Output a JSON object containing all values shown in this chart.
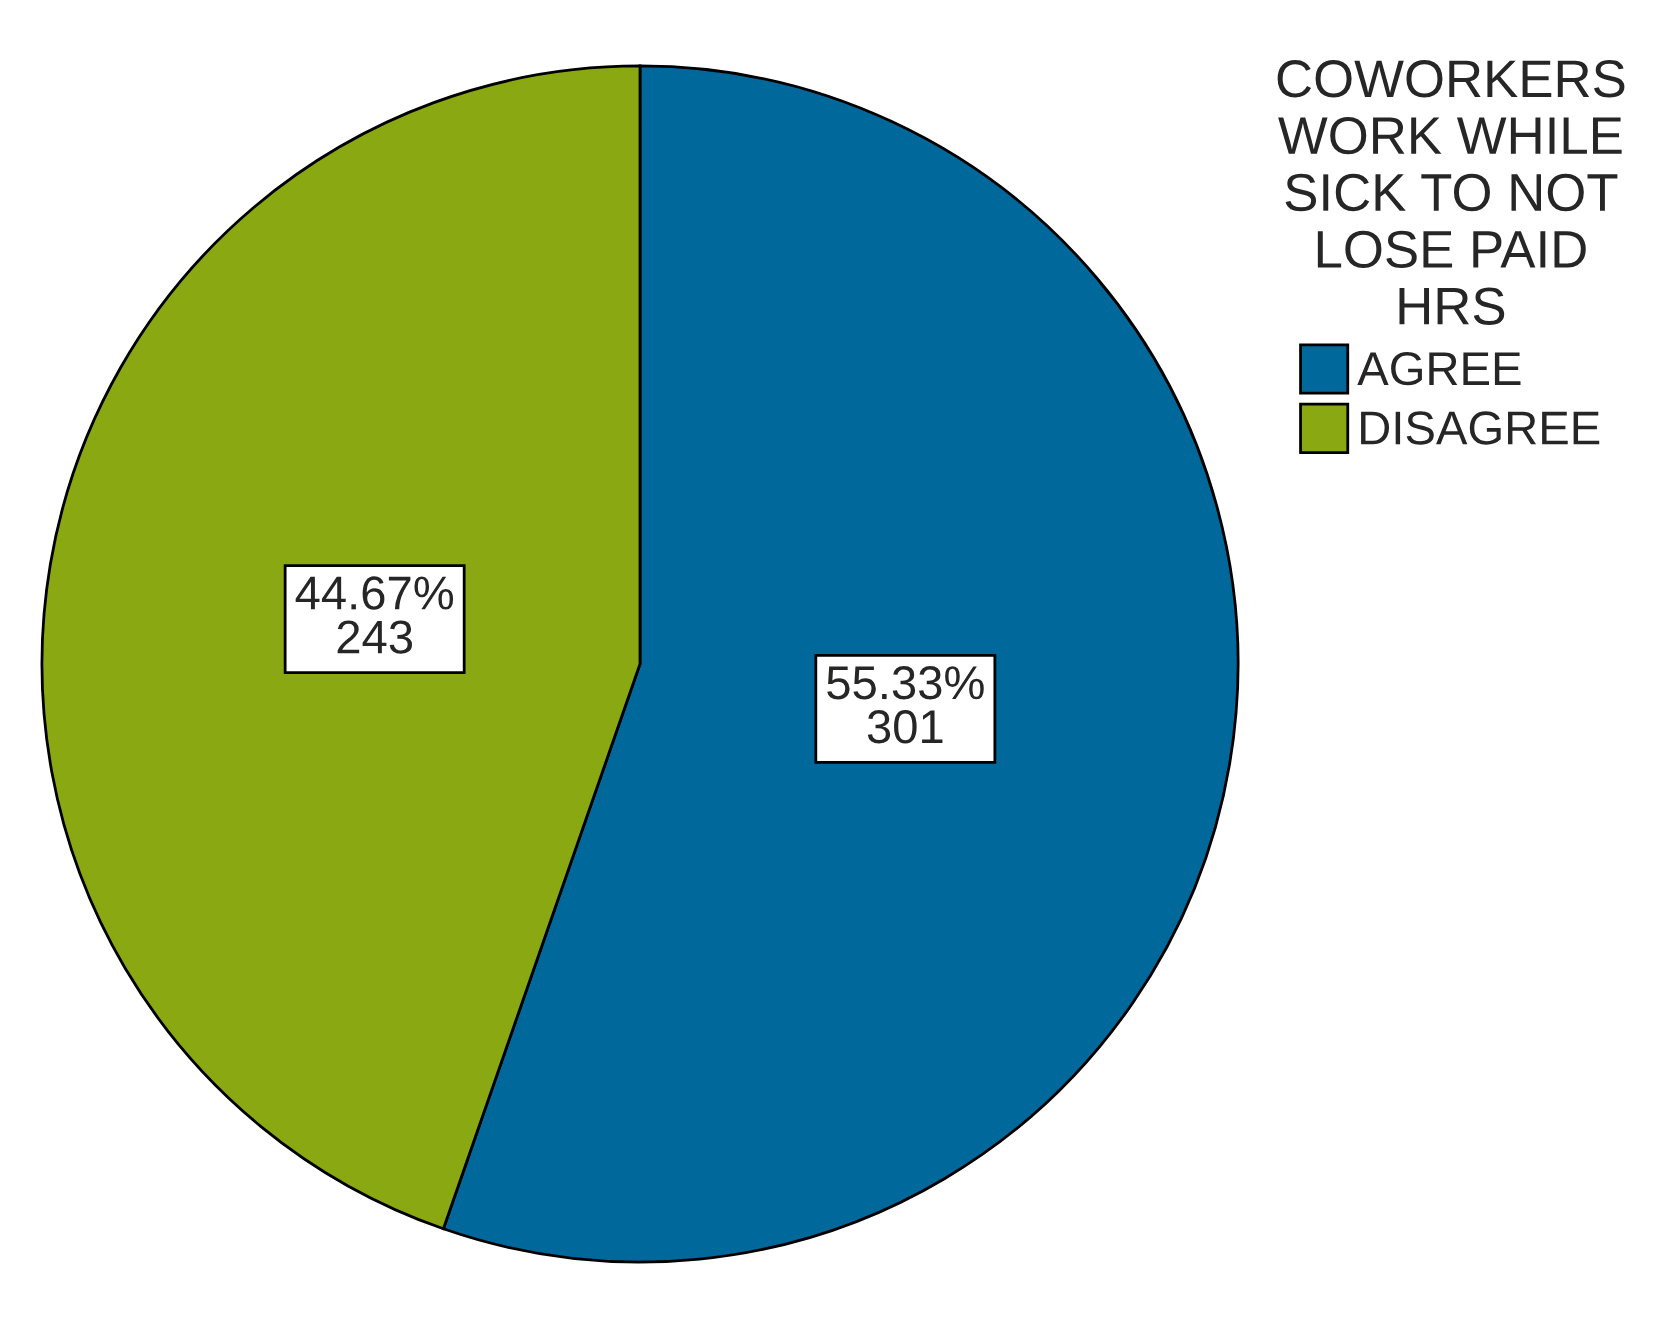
{
  "chart_data": {
    "type": "pie",
    "legend_title": "COWORKERS\nWORK WHILE\nSICK TO NOT\nLOSE PAID\nHRS",
    "categories": [
      "AGREE",
      "DISAGREE"
    ],
    "values": [
      301,
      243
    ],
    "colors": [
      "#00689a",
      "#8aa811"
    ],
    "value_labels": [
      "55.33%\n301",
      "44.67%\n243"
    ],
    "legend": "top right"
  }
}
